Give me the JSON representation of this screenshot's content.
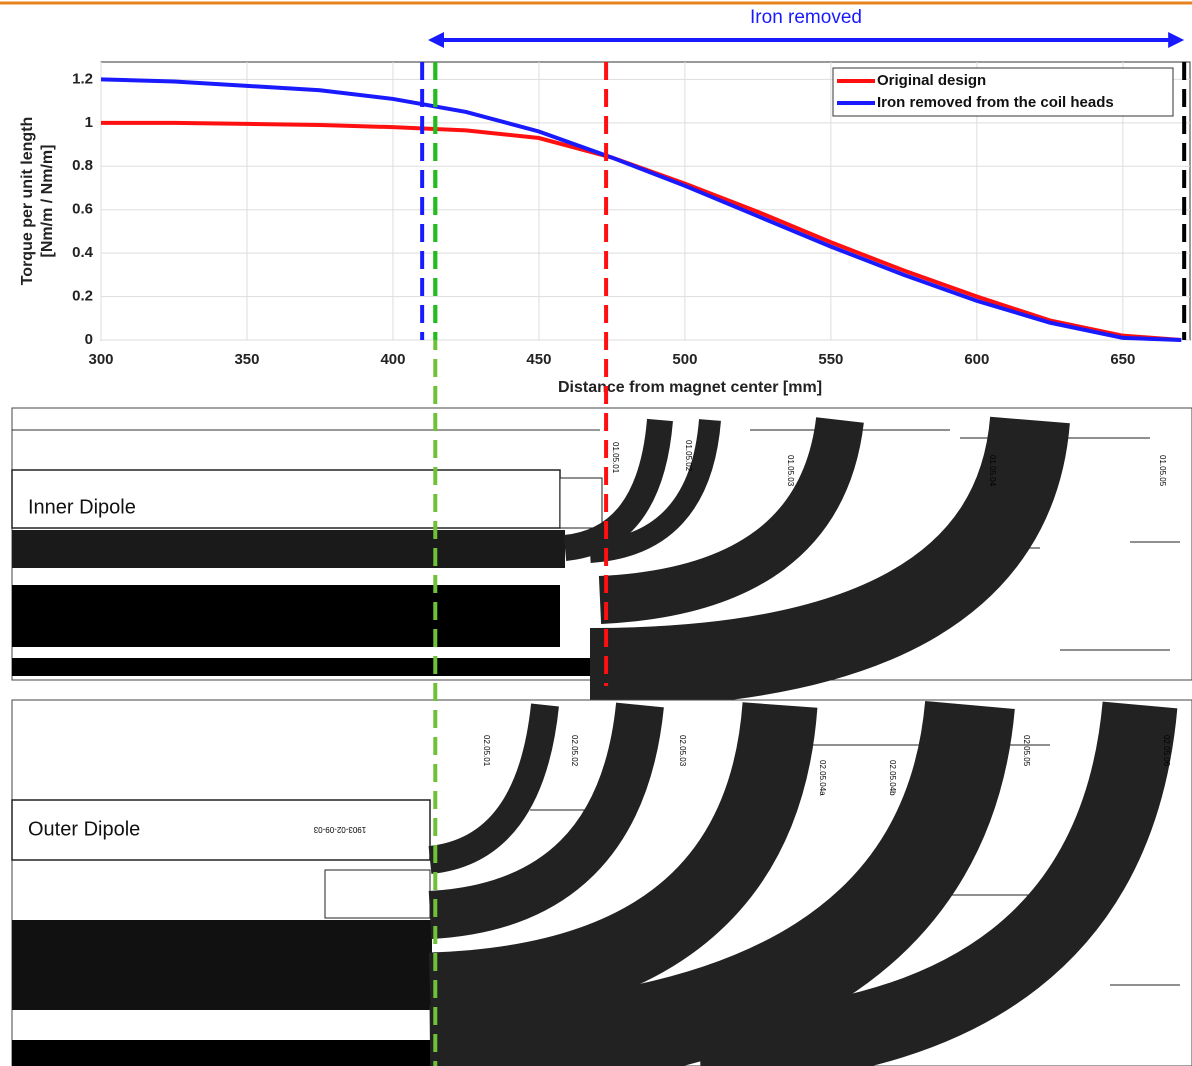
{
  "chart_data": {
    "type": "line",
    "xlabel": "Distance from magnet center [mm]",
    "ylabel": [
      "Torque per unit length",
      "[Nm/m / Nm/m]"
    ],
    "x": [
      300,
      325,
      350,
      375,
      400,
      425,
      450,
      475,
      500,
      525,
      550,
      575,
      600,
      625,
      650,
      670
    ],
    "series": [
      {
        "name": "Original design",
        "color": "#ff1010",
        "values": [
          1.0,
          1.0,
          0.995,
          0.99,
          0.98,
          0.965,
          0.93,
          0.84,
          0.72,
          0.59,
          0.45,
          0.32,
          0.2,
          0.09,
          0.02,
          0.0
        ]
      },
      {
        "name": "Iron removed from the coil heads",
        "color": "#1a1aff",
        "values": [
          1.2,
          1.19,
          1.17,
          1.15,
          1.11,
          1.05,
          0.96,
          0.84,
          0.71,
          0.57,
          0.43,
          0.3,
          0.18,
          0.08,
          0.01,
          0.0
        ]
      }
    ],
    "xlim": [
      300,
      673
    ],
    "ylim": [
      0,
      1.28
    ],
    "xticks": [
      300,
      350,
      400,
      450,
      500,
      550,
      600,
      650
    ],
    "yticks": [
      0,
      0.2,
      0.4,
      0.6,
      0.8,
      1,
      1.2
    ],
    "grid": true,
    "legend": "upper right",
    "vlines": [
      {
        "x": 410,
        "color": "#1a1aff"
      },
      {
        "x": 414.5,
        "color": "#22bb22"
      },
      {
        "x": 473,
        "color": "#ff1010"
      },
      {
        "x": 671,
        "color": "#000000"
      }
    ],
    "annotation": {
      "text": "Iron removed",
      "x_range": [
        412,
        671
      ],
      "color": "#1a1aff"
    }
  },
  "drawings": {
    "inner": {
      "label": "Inner Dipole",
      "blocks": [
        "01.05.01",
        "01.05.02",
        "01.05.03",
        "01.05.04",
        "01.05.05"
      ]
    },
    "outer": {
      "label": "Outer Dipole",
      "part": "1903-02-09-03",
      "blocks": [
        "02.05.01",
        "02.05.02",
        "02.05.03",
        "02.05.04a",
        "02.05.04b",
        "02.05.05",
        "02.05.06"
      ]
    }
  }
}
